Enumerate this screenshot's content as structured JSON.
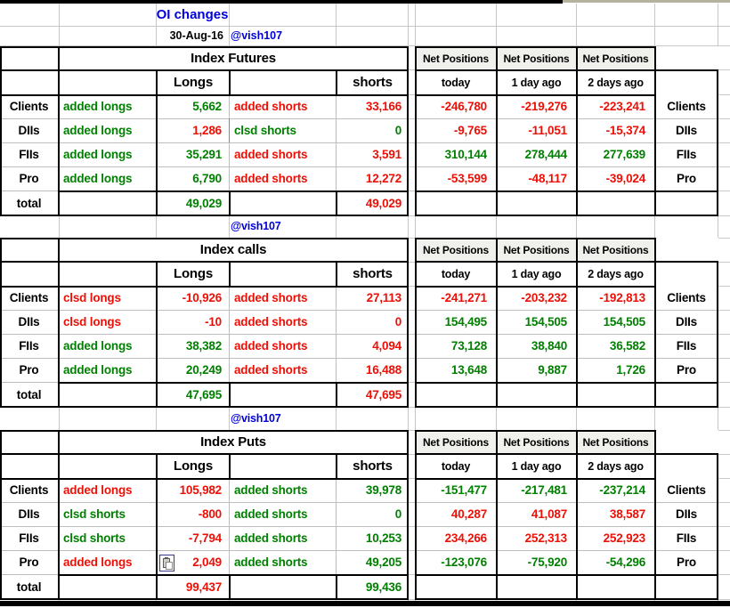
{
  "header": {
    "title": "OI changes",
    "date": "30-Aug-16",
    "handle": "@vish107"
  },
  "colors": {
    "green": "#008000",
    "red": "#ed1007",
    "blue": "#0000dd",
    "black": "#000000"
  },
  "net_header": "Net Positions",
  "net_cols": [
    "today",
    "1 day ago",
    "2 days ago"
  ],
  "total_label": "total",
  "sections": [
    {
      "title": "Index Futures",
      "annotation_above": null,
      "longs_header": "Longs",
      "shorts_header": "shorts",
      "rows": [
        {
          "label": "Clients",
          "long_action": "added longs",
          "long_action_color": "green",
          "long_value": "5,662",
          "long_value_color": "green",
          "short_action": "added shorts",
          "short_action_color": "red",
          "short_value": "33,166",
          "short_value_color": "red",
          "net": [
            {
              "v": "-246,780",
              "c": "red"
            },
            {
              "v": "-219,276",
              "c": "red"
            },
            {
              "v": "-223,241",
              "c": "red"
            }
          ]
        },
        {
          "label": "DIIs",
          "long_action": "added longs",
          "long_action_color": "green",
          "long_value": "1,286",
          "long_value_color": "red",
          "short_action": "clsd shorts",
          "short_action_color": "green",
          "short_value": "0",
          "short_value_color": "green",
          "net": [
            {
              "v": "-9,765",
              "c": "red"
            },
            {
              "v": "-11,051",
              "c": "red"
            },
            {
              "v": "-15,374",
              "c": "red"
            }
          ]
        },
        {
          "label": "FIIs",
          "long_action": "added longs",
          "long_action_color": "green",
          "long_value": "35,291",
          "long_value_color": "green",
          "short_action": "added shorts",
          "short_action_color": "red",
          "short_value": "3,591",
          "short_value_color": "red",
          "net": [
            {
              "v": "310,144",
              "c": "green"
            },
            {
              "v": "278,444",
              "c": "green"
            },
            {
              "v": "277,639",
              "c": "green"
            }
          ]
        },
        {
          "label": "Pro",
          "long_action": "added longs",
          "long_action_color": "green",
          "long_value": "6,790",
          "long_value_color": "green",
          "short_action": "added shorts",
          "short_action_color": "red",
          "short_value": "12,272",
          "short_value_color": "red",
          "net": [
            {
              "v": "-53,599",
              "c": "red"
            },
            {
              "v": "-48,117",
              "c": "red"
            },
            {
              "v": "-39,024",
              "c": "red"
            }
          ]
        }
      ],
      "total": {
        "longs": "49,029",
        "longs_color": "green",
        "shorts": "49,029",
        "shorts_color": "red"
      }
    },
    {
      "title": "Index calls",
      "annotation_above": "@vish107",
      "longs_header": "Longs",
      "shorts_header": "shorts",
      "rows": [
        {
          "label": "Clients",
          "long_action": "clsd longs",
          "long_action_color": "red",
          "long_value": "-10,926",
          "long_value_color": "red",
          "short_action": "added shorts",
          "short_action_color": "red",
          "short_value": "27,113",
          "short_value_color": "red",
          "net": [
            {
              "v": "-241,271",
              "c": "red"
            },
            {
              "v": "-203,232",
              "c": "red"
            },
            {
              "v": "-192,813",
              "c": "red"
            }
          ]
        },
        {
          "label": "DIIs",
          "long_action": "clsd longs",
          "long_action_color": "red",
          "long_value": "-10",
          "long_value_color": "red",
          "short_action": "added shorts",
          "short_action_color": "red",
          "short_value": "0",
          "short_value_color": "red",
          "net": [
            {
              "v": "154,495",
              "c": "green"
            },
            {
              "v": "154,505",
              "c": "green"
            },
            {
              "v": "154,505",
              "c": "green"
            }
          ]
        },
        {
          "label": "FIIs",
          "long_action": "added longs",
          "long_action_color": "green",
          "long_value": "38,382",
          "long_value_color": "green",
          "short_action": "added shorts",
          "short_action_color": "red",
          "short_value": "4,094",
          "short_value_color": "red",
          "net": [
            {
              "v": "73,128",
              "c": "green"
            },
            {
              "v": "38,840",
              "c": "green"
            },
            {
              "v": "36,582",
              "c": "green"
            }
          ]
        },
        {
          "label": "Pro",
          "long_action": "added longs",
          "long_action_color": "green",
          "long_value": "20,249",
          "long_value_color": "green",
          "short_action": "added shorts",
          "short_action_color": "red",
          "short_value": "16,488",
          "short_value_color": "red",
          "net": [
            {
              "v": "13,648",
              "c": "green"
            },
            {
              "v": "9,887",
              "c": "green"
            },
            {
              "v": "1,726",
              "c": "green"
            }
          ]
        }
      ],
      "total": {
        "longs": "47,695",
        "longs_color": "green",
        "shorts": "47,695",
        "shorts_color": "red"
      }
    },
    {
      "title": "Index Puts",
      "annotation_above": "@vish107",
      "longs_header": "Longs",
      "shorts_header": "shorts",
      "rows": [
        {
          "label": "Clients",
          "long_action": "added longs",
          "long_action_color": "red",
          "long_value": "105,982",
          "long_value_color": "red",
          "short_action": "added shorts",
          "short_action_color": "green",
          "short_value": "39,978",
          "short_value_color": "green",
          "net": [
            {
              "v": "-151,477",
              "c": "green"
            },
            {
              "v": "-217,481",
              "c": "green"
            },
            {
              "v": "-237,214",
              "c": "green"
            }
          ]
        },
        {
          "label": "DIIs",
          "long_action": "clsd shorts",
          "long_action_color": "green",
          "long_value": "-800",
          "long_value_color": "red",
          "short_action": "added shorts",
          "short_action_color": "green",
          "short_value": "0",
          "short_value_color": "green",
          "net": [
            {
              "v": "40,287",
              "c": "red"
            },
            {
              "v": "41,087",
              "c": "red"
            },
            {
              "v": "38,587",
              "c": "red"
            }
          ]
        },
        {
          "label": "FIIs",
          "long_action": "clsd shorts",
          "long_action_color": "green",
          "long_value": "-7,794",
          "long_value_color": "red",
          "short_action": "added shorts",
          "short_action_color": "green",
          "short_value": "10,253",
          "short_value_color": "green",
          "net": [
            {
              "v": "234,266",
              "c": "red"
            },
            {
              "v": "252,313",
              "c": "red"
            },
            {
              "v": "252,923",
              "c": "red"
            }
          ]
        },
        {
          "label": "Pro",
          "long_action": "added longs",
          "long_action_color": "red",
          "long_value": "2,049",
          "long_value_color": "red",
          "paste_icon": true,
          "short_action": "added shorts",
          "short_action_color": "green",
          "short_value": "49,205",
          "short_value_color": "green",
          "net": [
            {
              "v": "-123,076",
              "c": "green"
            },
            {
              "v": "-75,920",
              "c": "green"
            },
            {
              "v": "-54,296",
              "c": "green"
            }
          ]
        }
      ],
      "total": {
        "longs": "99,437",
        "longs_color": "red",
        "shorts": "99,436",
        "shorts_color": "green"
      }
    }
  ]
}
